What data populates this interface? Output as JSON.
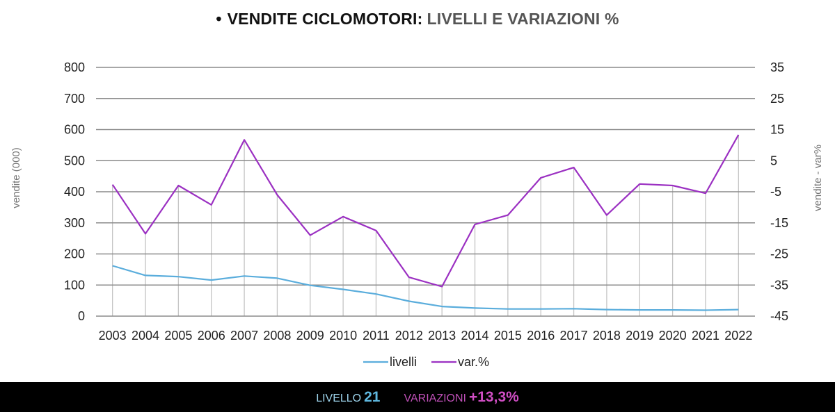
{
  "title": {
    "bullet": "•",
    "part1": "VENDITE CICLOMOTORI:",
    "part2": "LIVELLI E VARIAZIONI %"
  },
  "chart_data": {
    "type": "line",
    "x": [
      "2003",
      "2004",
      "2005",
      "2006",
      "2007",
      "2008",
      "2009",
      "2010",
      "2011",
      "2012",
      "2013",
      "2014",
      "2015",
      "2016",
      "2017",
      "2018",
      "2019",
      "2020",
      "2021",
      "2022"
    ],
    "series": [
      {
        "name": "livelli",
        "axis": "left",
        "color": "#5aaddc",
        "values": [
          162,
          131,
          127,
          116,
          129,
          122,
          99,
          86,
          71,
          48,
          31,
          26,
          23,
          23,
          24,
          21,
          20,
          20,
          19,
          21
        ]
      },
      {
        "name": "var.%",
        "axis": "right",
        "color": "#9b30c2",
        "values": [
          -2.7,
          -18.5,
          -3.0,
          -9.2,
          11.7,
          -6.0,
          -19.0,
          -13.0,
          -17.5,
          -32.5,
          -35.5,
          -15.5,
          -12.5,
          -0.5,
          2.8,
          -12.5,
          -2.5,
          -3.0,
          -5.5,
          13.3
        ]
      }
    ],
    "ylabel_left": "vendite (000)",
    "ylabel_right": "vendite - var%",
    "ylim_left": [
      0,
      800
    ],
    "ylim_right": [
      -45,
      35
    ],
    "yticks_left": [
      0,
      100,
      200,
      300,
      400,
      500,
      600,
      700,
      800
    ],
    "yticks_right": [
      -45,
      -35,
      -25,
      -15,
      -5,
      5,
      15,
      25,
      35
    ],
    "grid": true,
    "legend_position": "bottom-center",
    "colors": {
      "gridline": "#8a8a8a",
      "verticals": "#c4c4c4"
    }
  },
  "footer": {
    "livello_label": "LIVELLO",
    "livello_value": "21",
    "variazioni_label": "VARIAZIONI",
    "variazioni_value": "+13,3%"
  }
}
